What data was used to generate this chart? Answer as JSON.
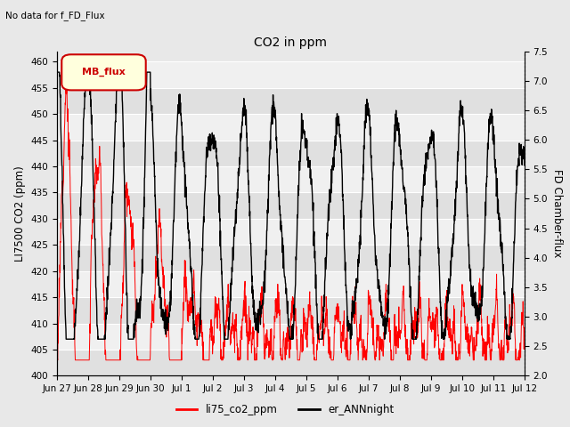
{
  "title": "CO2 in ppm",
  "subtitle": "No data for f_FD_Flux",
  "ylabel_left": "LI7500 CO2 (ppm)",
  "ylabel_right": "FD Chamber-flux",
  "ylim_left": [
    400,
    462
  ],
  "ylim_right": [
    2.0,
    7.5
  ],
  "yticks_left": [
    400,
    405,
    410,
    415,
    420,
    425,
    430,
    435,
    440,
    445,
    450,
    455,
    460
  ],
  "yticks_right": [
    2.0,
    2.5,
    3.0,
    3.5,
    4.0,
    4.5,
    5.0,
    5.5,
    6.0,
    6.5,
    7.0,
    7.5
  ],
  "xlabel_ticks": [
    "Jun 27",
    "Jun 28",
    "Jun 29",
    "Jun 30",
    "Jul 1",
    "Jul 2",
    "Jul 3",
    "Jul 4",
    "Jul 5",
    "Jul 6",
    "Jul 7",
    "Jul 8",
    "Jul 9",
    "Jul 10",
    "Jul 11",
    "Jul 12"
  ],
  "color_red": "#ff0000",
  "color_black": "#000000",
  "legend_label_red": "li75_co2_ppm",
  "legend_label_black": "er_ANNnight",
  "mb_flux_label": "MB_flux",
  "mb_flux_color": "#cc0000",
  "mb_flux_bg": "#ffffdd",
  "background_color": "#e8e8e8",
  "band_colors": [
    "#e0e0e0",
    "#f0f0f0"
  ],
  "num_points": 2000,
  "seed": 12
}
